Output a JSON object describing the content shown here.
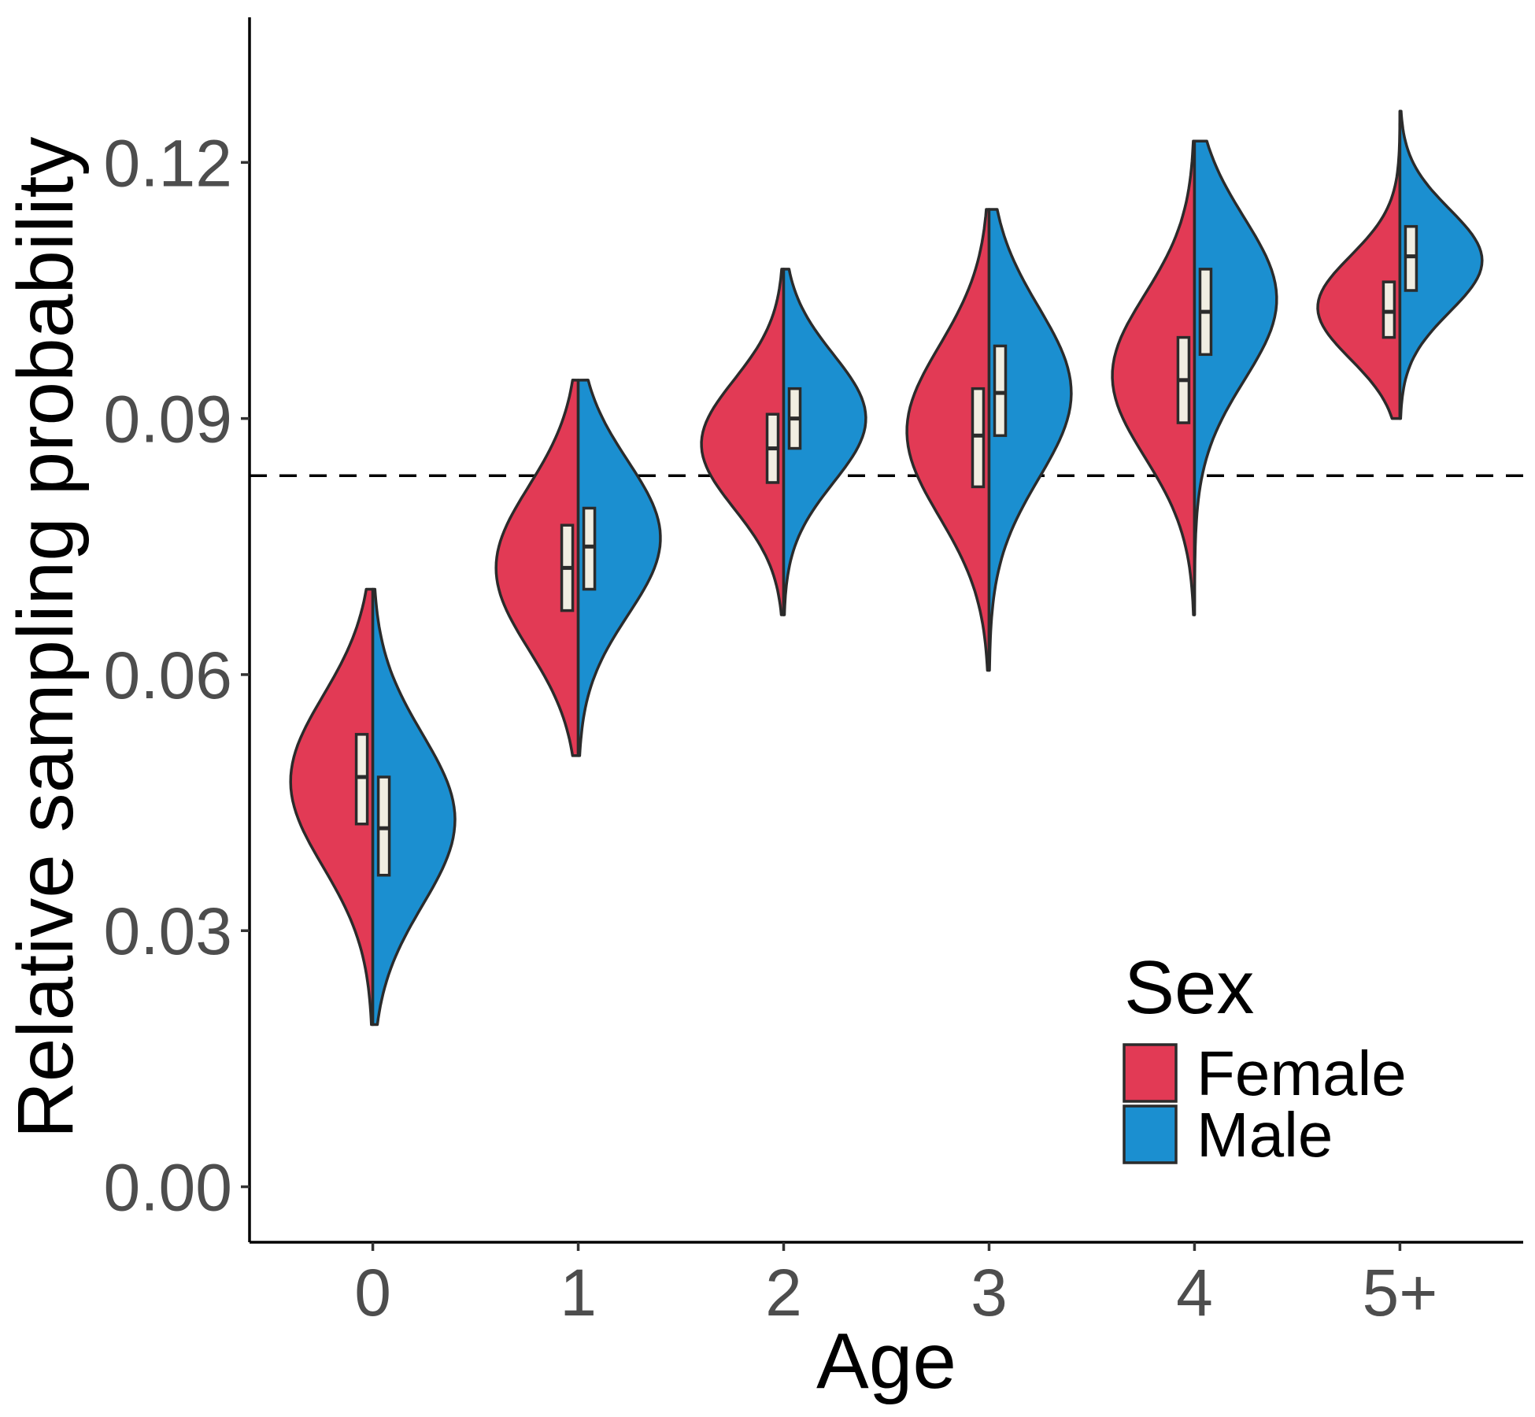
{
  "chart_data": {
    "type": "violin",
    "title": "",
    "xlabel": "Age",
    "ylabel": "Relative sampling probability",
    "ylim": [
      -0.0065,
      0.137
    ],
    "yticks": [
      0.0,
      0.03,
      0.06,
      0.09,
      0.12
    ],
    "ytick_labels": [
      "0.00",
      "0.03",
      "0.06",
      "0.09",
      "0.12"
    ],
    "categories": [
      "0",
      "1",
      "2",
      "3",
      "4",
      "5+"
    ],
    "reference_line": {
      "value": 0.0833,
      "style": "dashed"
    },
    "legend": {
      "title": "Sex",
      "position": "bottom-right"
    },
    "series": [
      {
        "name": "Female",
        "color": "#E23A55",
        "groups": [
          {
            "min": 0.019,
            "max": 0.07,
            "q1": 0.0425,
            "median": 0.048,
            "q3": 0.053,
            "mode": 0.0475,
            "spread": 0.01
          },
          {
            "min": 0.0505,
            "max": 0.0945,
            "q1": 0.0675,
            "median": 0.0725,
            "q3": 0.0775,
            "mode": 0.0725,
            "spread": 0.0095
          },
          {
            "min": 0.067,
            "max": 0.1075,
            "q1": 0.0825,
            "median": 0.0865,
            "q3": 0.0905,
            "mode": 0.087,
            "spread": 0.0075
          },
          {
            "min": 0.0605,
            "max": 0.1145,
            "q1": 0.082,
            "median": 0.088,
            "q3": 0.0935,
            "mode": 0.0885,
            "spread": 0.01
          },
          {
            "min": 0.067,
            "max": 0.1225,
            "q1": 0.0895,
            "median": 0.0945,
            "q3": 0.0995,
            "mode": 0.095,
            "spread": 0.0095
          },
          {
            "min": 0.09,
            "max": 0.126,
            "q1": 0.0995,
            "median": 0.1025,
            "q3": 0.106,
            "mode": 0.103,
            "spread": 0.006
          }
        ]
      },
      {
        "name": "Male",
        "color": "#1B8FD0",
        "groups": [
          {
            "min": 0.019,
            "max": 0.07,
            "q1": 0.0365,
            "median": 0.042,
            "q3": 0.048,
            "mode": 0.043,
            "spread": 0.01
          },
          {
            "min": 0.0505,
            "max": 0.0945,
            "q1": 0.07,
            "median": 0.075,
            "q3": 0.0795,
            "mode": 0.076,
            "spread": 0.009
          },
          {
            "min": 0.067,
            "max": 0.1075,
            "q1": 0.0865,
            "median": 0.09,
            "q3": 0.0935,
            "mode": 0.09,
            "spread": 0.0075
          },
          {
            "min": 0.0605,
            "max": 0.1145,
            "q1": 0.088,
            "median": 0.093,
            "q3": 0.0985,
            "mode": 0.093,
            "spread": 0.01
          },
          {
            "min": 0.067,
            "max": 0.1225,
            "q1": 0.0975,
            "median": 0.1025,
            "q3": 0.1075,
            "mode": 0.104,
            "spread": 0.0095
          },
          {
            "min": 0.09,
            "max": 0.126,
            "q1": 0.105,
            "median": 0.109,
            "q3": 0.1125,
            "mode": 0.1085,
            "spread": 0.006
          }
        ]
      }
    ]
  }
}
